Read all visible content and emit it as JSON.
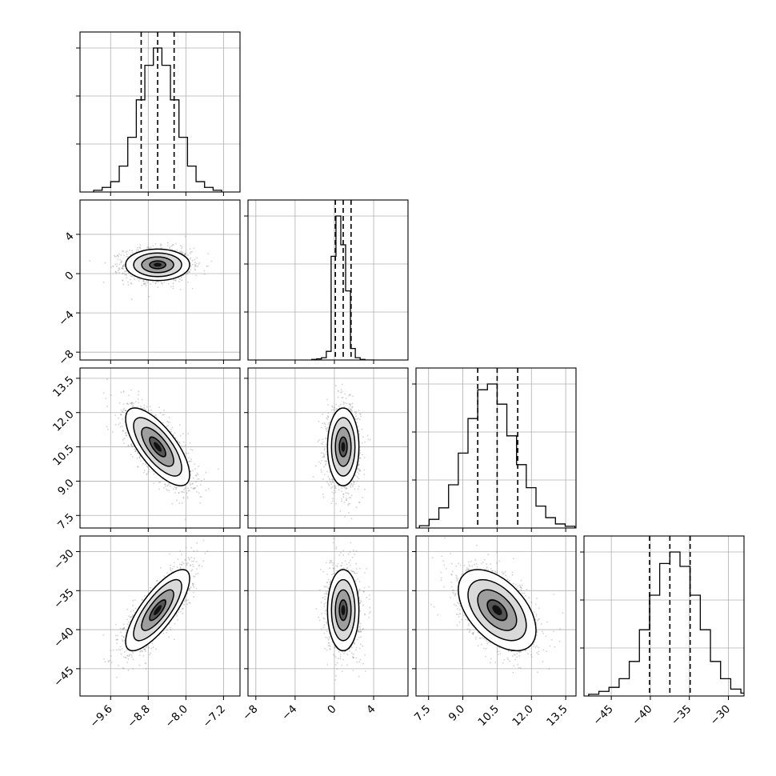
{
  "chart_data": {
    "type": "corner",
    "description_note": "",
    "n_params": 4,
    "params": [
      {
        "label": "",
        "range": [
          -10.25,
          -6.85
        ],
        "ticks": [
          -9.6,
          -8.8,
          -8.0,
          -7.2
        ],
        "tick_labels": [
          "−9.6",
          "−8.8",
          "−8.0",
          "−7.2"
        ],
        "mean": -8.6,
        "sigma": 0.34,
        "quantiles": [
          -8.95,
          -8.6,
          -8.25
        ]
      },
      {
        "label": "",
        "range": [
          -8.8,
          7.5
        ],
        "ticks": [
          -8,
          -4,
          0,
          4
        ],
        "tick_labels": [
          "−8",
          "−4",
          "0",
          "4"
        ],
        "mean": 0.9,
        "sigma": 0.8,
        "quantiles": [
          0.1,
          0.9,
          1.7
        ]
      },
      {
        "label": "",
        "range": [
          6.95,
          13.95
        ],
        "ticks": [
          7.5,
          9.0,
          10.5,
          12.0,
          13.5
        ],
        "tick_labels": [
          "7.5",
          "9.0",
          "10.5",
          "12.0",
          "13.5"
        ],
        "mean": 10.5,
        "sigma": 0.85,
        "quantiles": [
          9.65,
          10.5,
          11.4
        ]
      },
      {
        "label": "",
        "range": [
          -48.5,
          -28.0
        ],
        "ticks": [
          -45,
          -40,
          -35,
          -30
        ],
        "tick_labels": [
          "−45",
          "−40",
          "−35",
          "−30"
        ],
        "mean": -37.5,
        "sigma": 2.6,
        "quantiles": [
          -40.1,
          -37.5,
          -34.9
        ]
      }
    ],
    "correlations": [
      [
        1.0,
        0.0,
        -0.72,
        0.78
      ],
      [
        0.0,
        1.0,
        0.0,
        0.0
      ],
      [
        -0.72,
        0.0,
        1.0,
        -0.5
      ],
      [
        0.78,
        0.0,
        -0.5,
        1.0
      ]
    ],
    "hist_peak_density": [
      0.9,
      0.9,
      0.9,
      0.9
    ],
    "histograms": [
      {
        "counts": [
          3,
          8,
          18,
          45,
          95,
          160,
          220,
          250,
          220,
          160,
          95,
          45,
          18,
          8,
          3
        ]
      },
      {
        "counts": [
          1,
          2,
          4,
          15,
          180,
          250,
          200,
          120,
          20,
          4,
          1,
          0,
          0
        ]
      },
      {
        "counts": [
          4,
          15,
          35,
          75,
          130,
          190,
          240,
          250,
          215,
          160,
          110,
          70,
          38,
          18,
          7,
          3
        ]
      },
      {
        "counts": [
          3,
          8,
          15,
          30,
          60,
          115,
          175,
          230,
          250,
          225,
          175,
          115,
          60,
          30,
          12,
          5
        ]
      }
    ],
    "contour_levels_sigma": [
      0.5,
      1.0,
      1.5,
      2.0
    ],
    "grid": true,
    "quantile_lines": "dashed"
  }
}
